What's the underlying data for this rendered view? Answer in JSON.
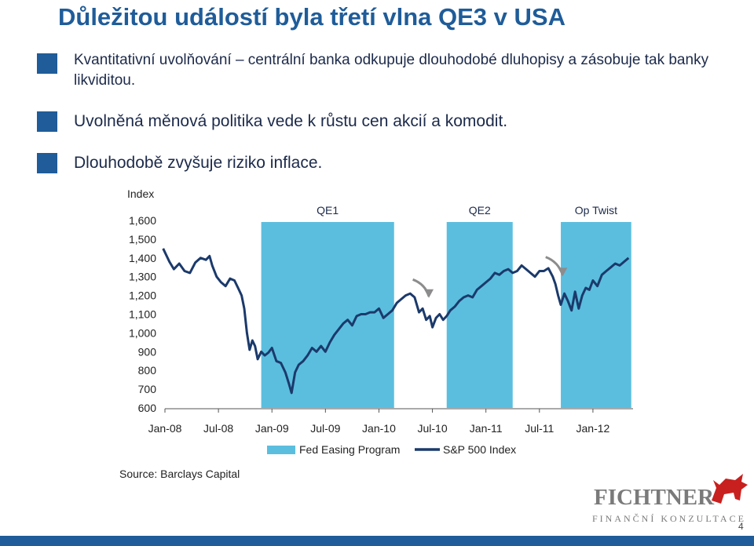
{
  "title": "Důležitou událostí byla třetí vlna QE3 v USA",
  "bullets": [
    "Kvantitativní uvolňování – centrální banka odkupuje dlouhodobé dluhopisy a zásobuje tak banky likviditou.",
    "Uvolněná měnová politika vede k růstu cen akcií a komodit.",
    "Dlouhodobě zvyšuje riziko inflace."
  ],
  "source": "Source: Barclays Capital",
  "logo": {
    "name": "FICHTNER",
    "subtitle": "FINANČNÍ KONZULTACE"
  },
  "page_number": "4",
  "colors": {
    "title": "#1f5c99",
    "bullet_square": "#1f5c99",
    "series": "#1b3a6b",
    "shading": "#4db8dc",
    "footer_bar": "#1f5c99",
    "logo_red": "#c8201e"
  },
  "chart_data": {
    "type": "line",
    "ylabel": "Index",
    "ylim": [
      600,
      1600
    ],
    "yticks": [
      "1,600",
      "1,500",
      "1,400",
      "1,300",
      "1,200",
      "1,100",
      "1,000",
      "900",
      "800",
      "700",
      "600"
    ],
    "yvalues": [
      1600,
      1500,
      1400,
      1300,
      1200,
      1100,
      1000,
      900,
      800,
      700,
      600
    ],
    "xrange": [
      0,
      52.5
    ],
    "xticks": [
      {
        "label": "Jan-08",
        "m": 0
      },
      {
        "label": "Jul-08",
        "m": 6
      },
      {
        "label": "Jan-09",
        "m": 12
      },
      {
        "label": "Jul-09",
        "m": 18
      },
      {
        "label": "Jan-10",
        "m": 24
      },
      {
        "label": "Jul-10",
        "m": 30
      },
      {
        "label": "Jan-11",
        "m": 36
      },
      {
        "label": "Jul-11",
        "m": 42
      },
      {
        "label": "Jan-12",
        "m": 48
      }
    ],
    "periods": [
      {
        "label": "QE1",
        "start": 10.8,
        "end": 25.7
      },
      {
        "label": "QE2",
        "start": 31.6,
        "end": 39.0
      },
      {
        "label": "Op Twist",
        "start": 44.4,
        "end": 52.3
      }
    ],
    "legend": [
      "Fed Easing Program",
      "S&P 500 Index"
    ],
    "series": [
      {
        "name": "S&P 500 Index",
        "points": [
          [
            -0.2,
            1450
          ],
          [
            0.5,
            1380
          ],
          [
            1.0,
            1340
          ],
          [
            1.6,
            1370
          ],
          [
            2.2,
            1330
          ],
          [
            2.8,
            1320
          ],
          [
            3.4,
            1375
          ],
          [
            4.0,
            1400
          ],
          [
            4.6,
            1390
          ],
          [
            5.0,
            1410
          ],
          [
            5.3,
            1360
          ],
          [
            5.8,
            1300
          ],
          [
            6.3,
            1270
          ],
          [
            6.8,
            1250
          ],
          [
            7.3,
            1290
          ],
          [
            7.8,
            1280
          ],
          [
            8.2,
            1240
          ],
          [
            8.6,
            1200
          ],
          [
            8.9,
            1130
          ],
          [
            9.2,
            1000
          ],
          [
            9.5,
            910
          ],
          [
            9.8,
            960
          ],
          [
            10.1,
            930
          ],
          [
            10.4,
            860
          ],
          [
            10.8,
            900
          ],
          [
            11.2,
            880
          ],
          [
            11.6,
            895
          ],
          [
            12.0,
            920
          ],
          [
            12.5,
            850
          ],
          [
            13.0,
            840
          ],
          [
            13.5,
            790
          ],
          [
            13.9,
            730
          ],
          [
            14.2,
            680
          ],
          [
            14.6,
            790
          ],
          [
            15.0,
            830
          ],
          [
            15.5,
            850
          ],
          [
            16.0,
            880
          ],
          [
            16.5,
            920
          ],
          [
            17.0,
            900
          ],
          [
            17.5,
            930
          ],
          [
            18.0,
            900
          ],
          [
            18.5,
            950
          ],
          [
            19.0,
            990
          ],
          [
            19.5,
            1020
          ],
          [
            20.0,
            1050
          ],
          [
            20.5,
            1070
          ],
          [
            21.0,
            1040
          ],
          [
            21.5,
            1090
          ],
          [
            22.0,
            1100
          ],
          [
            22.5,
            1100
          ],
          [
            23.0,
            1110
          ],
          [
            23.5,
            1110
          ],
          [
            24.0,
            1130
          ],
          [
            24.5,
            1080
          ],
          [
            25.0,
            1100
          ],
          [
            25.5,
            1120
          ],
          [
            26.0,
            1160
          ],
          [
            26.5,
            1180
          ],
          [
            27.0,
            1200
          ],
          [
            27.5,
            1210
          ],
          [
            28.0,
            1190
          ],
          [
            28.5,
            1110
          ],
          [
            28.9,
            1130
          ],
          [
            29.3,
            1070
          ],
          [
            29.7,
            1090
          ],
          [
            30.0,
            1030
          ],
          [
            30.4,
            1080
          ],
          [
            30.8,
            1100
          ],
          [
            31.2,
            1070
          ],
          [
            31.6,
            1090
          ],
          [
            32.0,
            1120
          ],
          [
            32.5,
            1140
          ],
          [
            33.0,
            1170
          ],
          [
            33.5,
            1190
          ],
          [
            34.0,
            1200
          ],
          [
            34.5,
            1190
          ],
          [
            35.0,
            1230
          ],
          [
            35.5,
            1250
          ],
          [
            36.0,
            1270
          ],
          [
            36.5,
            1290
          ],
          [
            37.0,
            1320
          ],
          [
            37.5,
            1310
          ],
          [
            38.0,
            1330
          ],
          [
            38.5,
            1340
          ],
          [
            39.0,
            1320
          ],
          [
            39.5,
            1330
          ],
          [
            40.0,
            1360
          ],
          [
            40.5,
            1340
          ],
          [
            41.0,
            1320
          ],
          [
            41.5,
            1300
          ],
          [
            42.0,
            1330
          ],
          [
            42.5,
            1330
          ],
          [
            43.0,
            1345
          ],
          [
            43.5,
            1300
          ],
          [
            43.8,
            1260
          ],
          [
            44.1,
            1200
          ],
          [
            44.4,
            1150
          ],
          [
            44.8,
            1210
          ],
          [
            45.2,
            1170
          ],
          [
            45.6,
            1120
          ],
          [
            46.0,
            1220
          ],
          [
            46.4,
            1130
          ],
          [
            46.8,
            1200
          ],
          [
            47.2,
            1240
          ],
          [
            47.6,
            1230
          ],
          [
            48.0,
            1280
          ],
          [
            48.5,
            1250
          ],
          [
            49.0,
            1310
          ],
          [
            49.5,
            1330
          ],
          [
            50.0,
            1350
          ],
          [
            50.5,
            1370
          ],
          [
            51.0,
            1360
          ],
          [
            51.5,
            1380
          ],
          [
            52.0,
            1400
          ]
        ]
      }
    ],
    "arrows": [
      {
        "from": [
          27.8,
          1285
        ],
        "ctrl": [
          29.2,
          1260
        ],
        "to": [
          29.6,
          1195
        ]
      },
      {
        "from": [
          42.7,
          1405
        ],
        "ctrl": [
          44.1,
          1380
        ],
        "to": [
          44.6,
          1310
        ]
      }
    ]
  }
}
